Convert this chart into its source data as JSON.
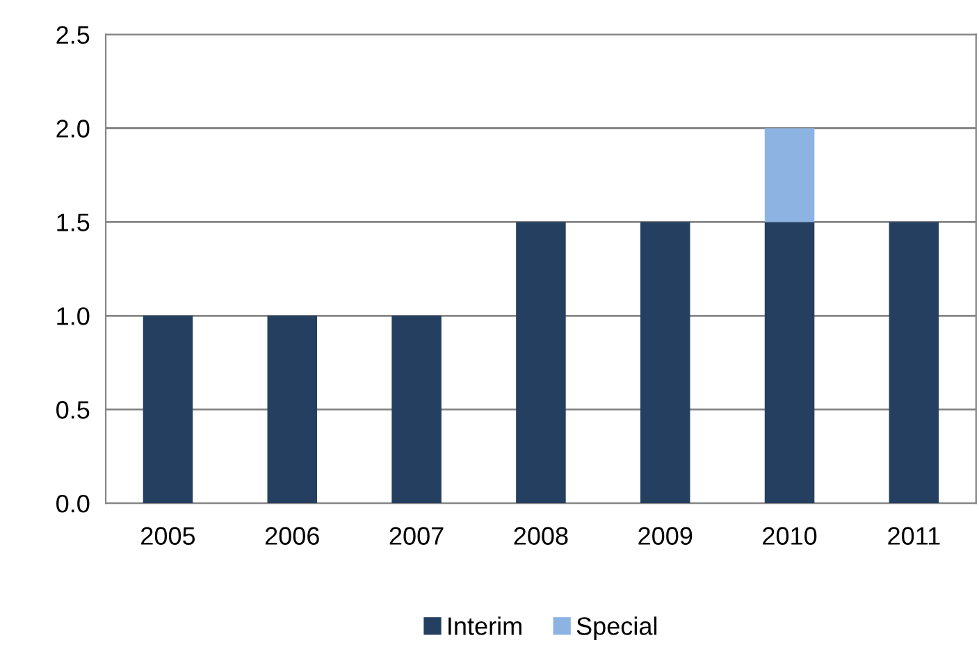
{
  "chart_data": {
    "type": "bar",
    "stacked": true,
    "categories": [
      "2005",
      "2006",
      "2007",
      "2008",
      "2009",
      "2010",
      "2011"
    ],
    "series": [
      {
        "name": "Interim",
        "color": "#243f60",
        "values": [
          1.0,
          1.0,
          1.0,
          1.5,
          1.5,
          1.5,
          1.5
        ]
      },
      {
        "name": "Special",
        "color": "#8db3e2",
        "values": [
          null,
          null,
          null,
          null,
          null,
          0.5,
          null
        ]
      }
    ],
    "ylim": [
      0,
      2.5
    ],
    "yticks": [
      {
        "value": 0,
        "label": "0.0"
      },
      {
        "value": 0.5,
        "label": "0.5"
      },
      {
        "value": 1,
        "label": "1.0"
      },
      {
        "value": 1.5,
        "label": "1.5"
      },
      {
        "value": 2,
        "label": "2.0"
      },
      {
        "value": 2.5,
        "label": "2.5"
      }
    ],
    "grid": "y",
    "legend": "bottom"
  }
}
